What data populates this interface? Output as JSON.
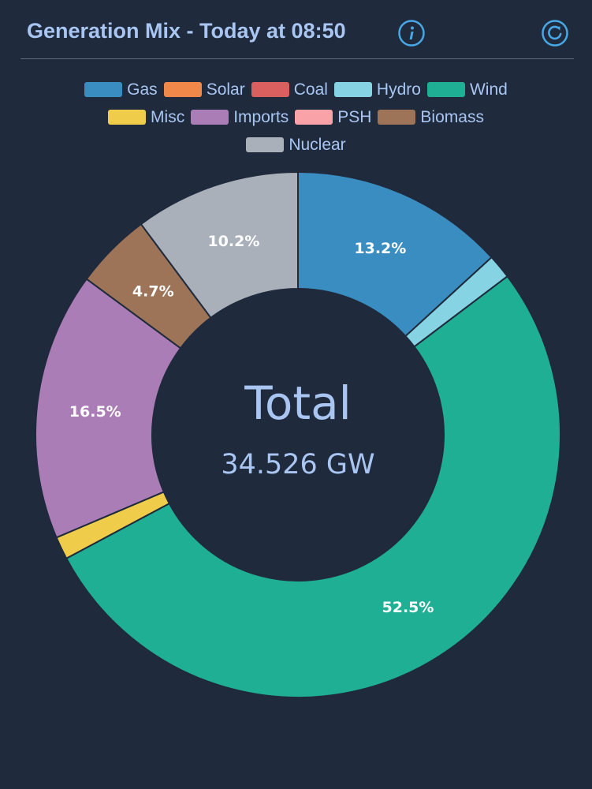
{
  "header": {
    "title": "Generation Mix - Today at 08:50",
    "info_icon": "info-icon",
    "refresh_icon": "refresh-icon"
  },
  "center": {
    "label": "Total",
    "value": "34.526 GW"
  },
  "colors": {
    "background": "#1f2a3c",
    "text": "#a9c6f2",
    "accent": "#47a8e5"
  },
  "chart_data": {
    "type": "pie",
    "title": "Generation Mix - Today at 08:50",
    "legend_placement": "top",
    "slices": [
      {
        "name": "Gas",
        "value": 13.2,
        "color": "#3a8dc1",
        "label": "13.2%"
      },
      {
        "name": "Solar",
        "value": 0.0,
        "color": "#f0884a",
        "label": ""
      },
      {
        "name": "Coal",
        "value": 0.0,
        "color": "#d9605e",
        "label": ""
      },
      {
        "name": "Hydro",
        "value": 1.5,
        "color": "#86d3e4",
        "label": ""
      },
      {
        "name": "Wind",
        "value": 52.5,
        "color": "#1eaf94",
        "label": "52.5%"
      },
      {
        "name": "Misc",
        "value": 1.4,
        "color": "#efcd4a",
        "label": ""
      },
      {
        "name": "Imports",
        "value": 16.5,
        "color": "#ab7db6",
        "label": "16.5%"
      },
      {
        "name": "PSH",
        "value": 0.0,
        "color": "#f9a2a7",
        "label": ""
      },
      {
        "name": "Biomass",
        "value": 4.7,
        "color": "#9d7458",
        "label": "4.7%"
      },
      {
        "name": "Nuclear",
        "value": 10.2,
        "color": "#a9b0ba",
        "label": "10.2%"
      }
    ]
  }
}
